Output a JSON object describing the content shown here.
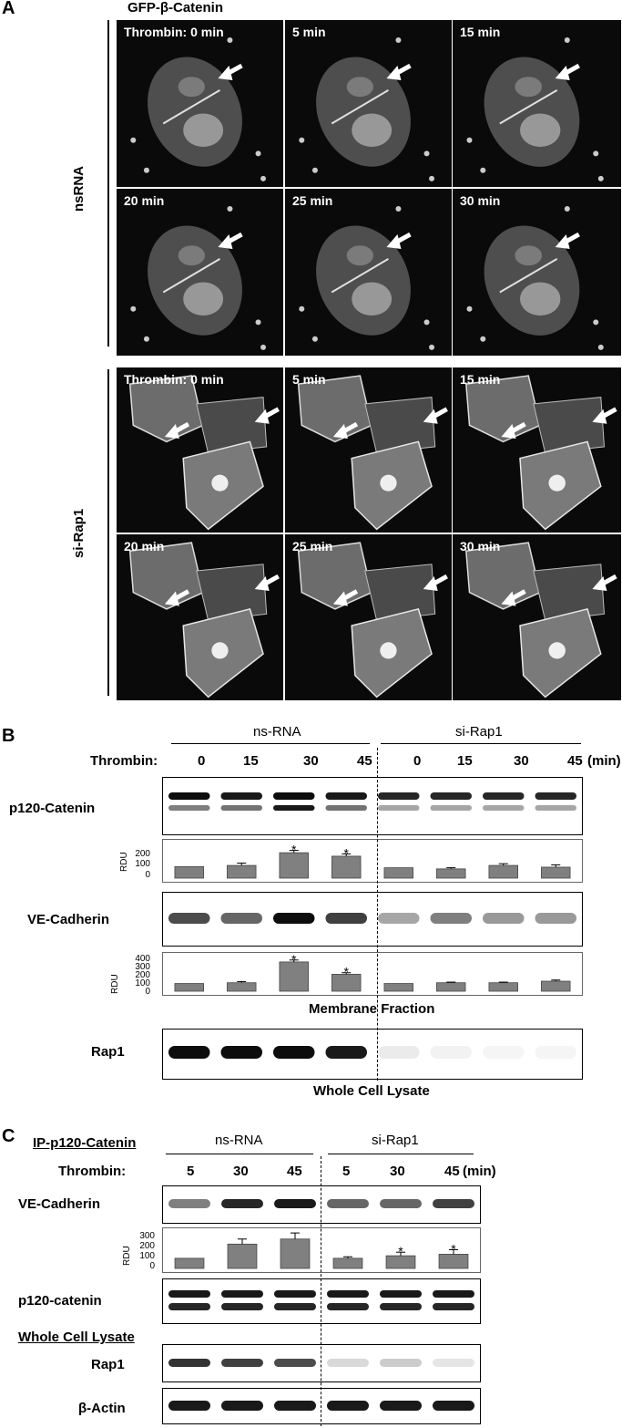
{
  "panelA": {
    "letter": "A",
    "title": "GFP-β-Catenin",
    "groups": [
      {
        "label": "nsRNA",
        "frames": [
          "Thrombin: 0 min",
          "5 min",
          "15 min",
          "20 min",
          "25 min",
          "30 min"
        ]
      },
      {
        "label": "si-Rap1",
        "frames": [
          "Thrombin: 0 min",
          "5 min",
          "15 min",
          "20 min",
          "25 min",
          "30 min"
        ]
      }
    ]
  },
  "panelB": {
    "letter": "B",
    "header_ns": "ns-RNA",
    "header_si": "si-Rap1",
    "thrombin_label": "Thrombin:",
    "timepoints": [
      "0",
      "15",
      "30",
      "45",
      "0",
      "15",
      "30",
      "45"
    ],
    "unit": "(min)",
    "row_p120": "p120-Catenin",
    "row_ve": "VE-Cadherin",
    "row_rap1": "Rap1",
    "rdu": "RDU",
    "ticks_p120": [
      "200",
      "100",
      "0"
    ],
    "ticks_ve": [
      "400",
      "300",
      "200",
      "100",
      "0"
    ],
    "membrane_fraction": "Membrane Fraction",
    "whole_cell_lysate": "Whole Cell Lysate",
    "chart_p120": {
      "values": [
        100,
        110,
        220,
        190,
        90,
        80,
        110,
        95
      ],
      "err": [
        0,
        20,
        20,
        20,
        0,
        10,
        15,
        20
      ],
      "ymax": 300,
      "star": [
        false,
        false,
        true,
        true,
        false,
        false,
        false,
        false
      ]
    },
    "chart_ve": {
      "values": [
        100,
        110,
        380,
        220,
        100,
        110,
        110,
        130
      ],
      "err": [
        0,
        15,
        25,
        20,
        0,
        8,
        8,
        15
      ],
      "ymax": 450,
      "star": [
        false,
        false,
        true,
        true,
        false,
        false,
        false,
        false
      ]
    }
  },
  "panelC": {
    "letter": "C",
    "ip_label": "IP-p120-Catenin",
    "header_ns": "ns-RNA",
    "header_si": "si-Rap1",
    "thrombin_label": "Thrombin:",
    "timepoints": [
      "5",
      "30",
      "45",
      "5",
      "30",
      "45"
    ],
    "unit": "(min)",
    "row_ve": "VE-Cadherin",
    "row_p120": "p120-catenin",
    "wcl": "Whole Cell Lysate",
    "row_rap1": "Rap1",
    "row_actin": "β-Actin",
    "rdu": "RDU",
    "ticks": [
      "300",
      "200",
      "100",
      "0"
    ],
    "chart": {
      "values": [
        100,
        240,
        290,
        100,
        125,
        140
      ],
      "err": [
        0,
        50,
        60,
        15,
        35,
        45
      ],
      "ymax": 360,
      "star": [
        false,
        false,
        false,
        false,
        true,
        true
      ]
    }
  }
}
